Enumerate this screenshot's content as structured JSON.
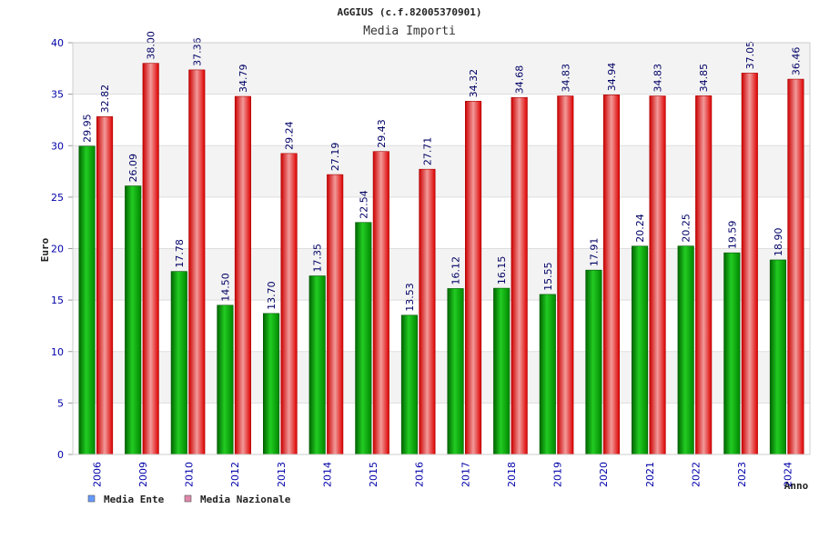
{
  "chart_data": {
    "type": "bar",
    "title": "AGGIUS (c.f.82005370901)",
    "subtitle": "Media Importi",
    "xlabel": "Anno",
    "ylabel": "Euro",
    "ylim": [
      0,
      40
    ],
    "yticks": [
      0,
      5,
      10,
      15,
      20,
      25,
      30,
      35,
      40
    ],
    "grid": true,
    "legend_position": "bottom-left",
    "categories": [
      "2006",
      "2009",
      "2010",
      "2012",
      "2013",
      "2014",
      "2015",
      "2016",
      "2017",
      "2018",
      "2019",
      "2020",
      "2021",
      "2022",
      "2023",
      "2024"
    ],
    "series": [
      {
        "name": "Media Ente",
        "color": "#00aa00",
        "legend_color": "#6699ff",
        "values": [
          29.95,
          26.09,
          17.78,
          14.5,
          13.7,
          17.35,
          22.54,
          13.53,
          16.12,
          16.15,
          15.55,
          17.91,
          20.24,
          20.25,
          19.59,
          18.9
        ],
        "labels": [
          "29.95",
          "26.09",
          "17.78",
          "14.50",
          "13.70",
          "17.35",
          "22.54",
          "13.53",
          "16.12",
          "16.15",
          "15.55",
          "17.91",
          "20.24",
          "20.25",
          "19.59",
          "18.90"
        ]
      },
      {
        "name": "Media Nazionale",
        "color": "#ee1111",
        "legend_color": "#dd88aa",
        "values": [
          32.82,
          38.0,
          37.36,
          34.79,
          29.24,
          27.19,
          29.43,
          27.71,
          34.32,
          34.68,
          34.83,
          34.94,
          34.83,
          34.85,
          37.05,
          36.46
        ],
        "labels": [
          "32.82",
          "38.00",
          "37.36",
          "34.79",
          "29.24",
          "27.19",
          "29.43",
          "27.71",
          "34.32",
          "34.68",
          "34.83",
          "34.94",
          "34.83",
          "34.85",
          "37.05",
          "36.46"
        ]
      }
    ]
  }
}
